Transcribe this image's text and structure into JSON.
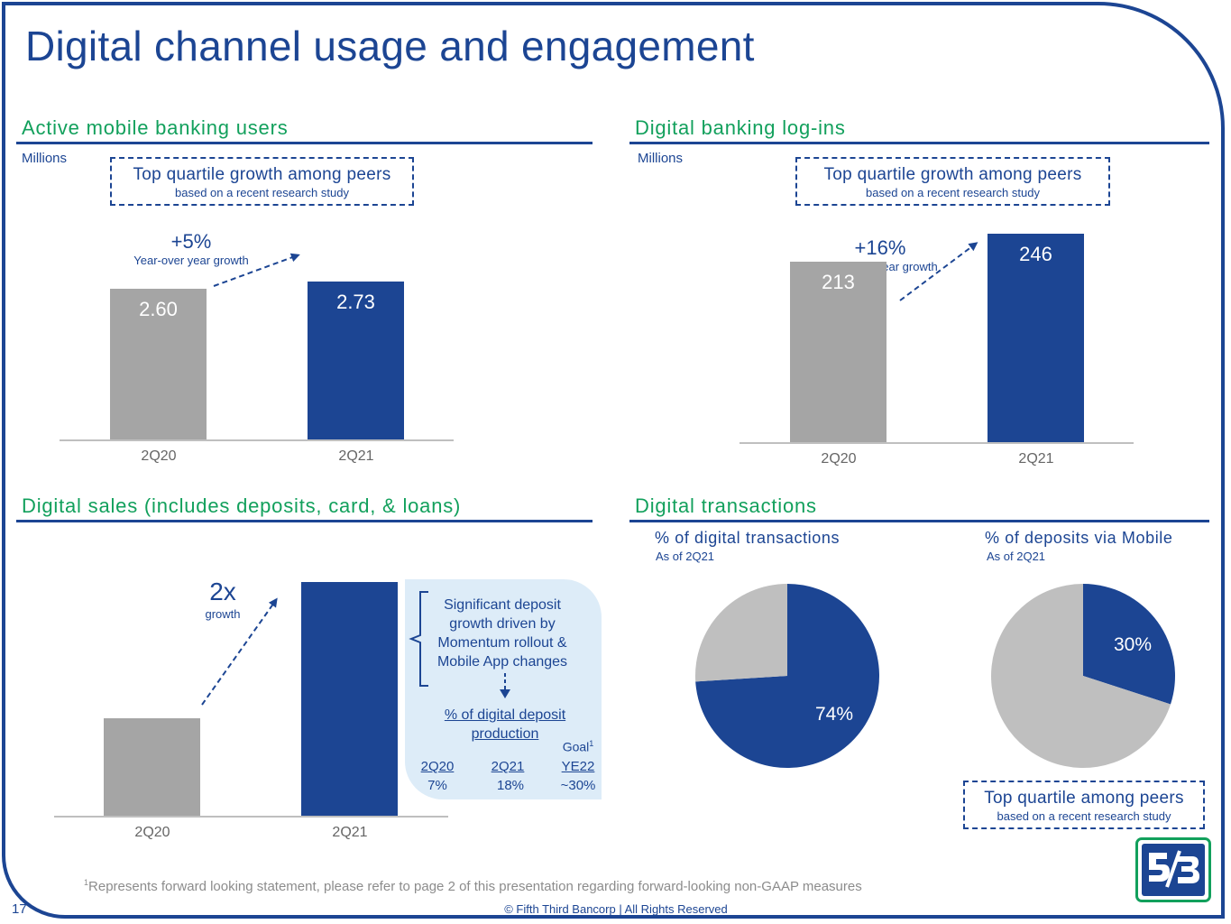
{
  "title": "Digital channel usage and engagement",
  "page_number": "17",
  "copyright": "© Fifth Third Bancorp | All Rights Reserved",
  "footnote": {
    "marker": "1",
    "text": "Represents forward looking statement, please refer to page 2 of this presentation regarding forward-looking non-GAAP measures"
  },
  "colors": {
    "brand_blue": "#1c4593",
    "brand_green": "#12a05c",
    "bar_gray": "#a5a5a5",
    "panel_light_blue": "#ddecf8"
  },
  "logo": {
    "name": "fifth-third-logo",
    "text": "5/3"
  },
  "mobile": {
    "heading": "Active mobile banking users",
    "units": "Millions",
    "callout_main": "Top quartile growth among peers",
    "callout_sub": "based on a recent research study",
    "growth_value": "+5%",
    "growth_label": "Year-over year growth"
  },
  "logins": {
    "heading": "Digital banking log-ins",
    "units": "Millions",
    "callout_main": "Top quartile growth among peers",
    "callout_sub": "based on a recent research study",
    "growth_value": "+16%",
    "growth_label": "Year-over year growth"
  },
  "sales": {
    "heading": "Digital sales (includes deposits, card, & loans)",
    "growth_value": "2x",
    "growth_label": "growth",
    "note": "Significant deposit growth driven by Momentum rollout & Mobile App changes",
    "table_title": "% of digital deposit production",
    "goal_label": "Goal",
    "goal_marker": "1",
    "columns": [
      "2Q20",
      "2Q21",
      "YE22"
    ],
    "values": [
      "7%",
      "18%",
      "~30%"
    ]
  },
  "transactions": {
    "heading": "Digital transactions",
    "callout_main": "Top quartile among peers",
    "callout_sub": "based on a recent research study"
  },
  "chart_data": [
    {
      "type": "bar",
      "categories": [
        "2Q20",
        "2Q21"
      ],
      "values": [
        2.6,
        2.73
      ],
      "value_labels": [
        "2.60",
        "2.73"
      ],
      "colors": [
        "#a5a5a5",
        "#1c4593"
      ],
      "title": "Active mobile banking users",
      "ylabel": "Millions",
      "ylim": [
        0,
        3.1
      ]
    },
    {
      "type": "bar",
      "categories": [
        "2Q20",
        "2Q21"
      ],
      "values": [
        213,
        246
      ],
      "value_labels": [
        "213",
        "246"
      ],
      "colors": [
        "#a5a5a5",
        "#1c4593"
      ],
      "title": "Digital banking log-ins",
      "ylabel": "Millions",
      "ylim": [
        0,
        246
      ]
    },
    {
      "type": "bar",
      "categories": [
        "2Q20",
        "2Q21"
      ],
      "values": [
        1,
        2.4
      ],
      "colors": [
        "#a5a5a5",
        "#1c4593"
      ],
      "title": "Digital sales (includes deposits, card, & loans)",
      "ylim": [
        0,
        2.4
      ]
    },
    {
      "type": "pie",
      "title": "% of digital transactions",
      "subtitle": "As of 2Q21",
      "values": [
        74,
        26
      ],
      "labels": [
        "74%",
        ""
      ],
      "colors": [
        "#1c4593",
        "#bfbfbf"
      ]
    },
    {
      "type": "pie",
      "title": "% of deposits via Mobile",
      "subtitle": "As of 2Q21",
      "values": [
        30,
        70
      ],
      "labels": [
        "30%",
        ""
      ],
      "colors": [
        "#1c4593",
        "#bfbfbf"
      ]
    }
  ]
}
